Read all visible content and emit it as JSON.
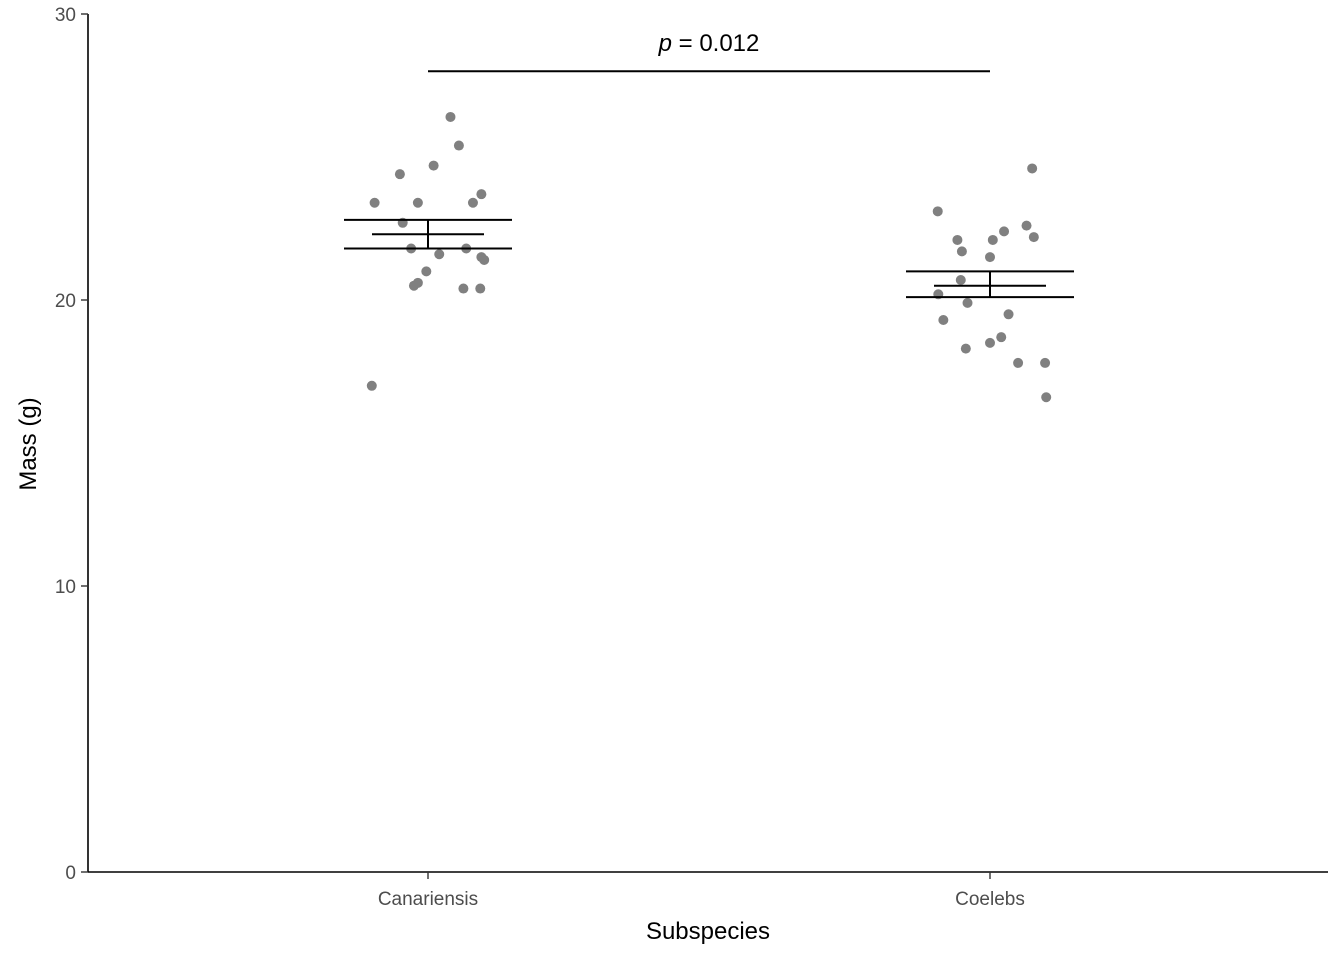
{
  "chart_data": {
    "type": "scatter",
    "title": "",
    "xlabel": "Subspecies",
    "ylabel": "Mass (g)",
    "ylim": [
      0,
      30
    ],
    "yticks": [
      0,
      10,
      20,
      30
    ],
    "categories": [
      "Canariensis",
      "Coelebs"
    ],
    "grid": false,
    "legend": "none",
    "point_color": "#808080",
    "line_color": "#000000",
    "series": [
      {
        "category": "Canariensis",
        "points": [
          {
            "jitter": 0.04,
            "y": 26.4
          },
          {
            "jitter": 0.055,
            "y": 25.4
          },
          {
            "jitter": 0.01,
            "y": 24.7
          },
          {
            "jitter": -0.05,
            "y": 24.4
          },
          {
            "jitter": 0.095,
            "y": 23.7
          },
          {
            "jitter": -0.095,
            "y": 23.4
          },
          {
            "jitter": -0.018,
            "y": 23.4
          },
          {
            "jitter": 0.08,
            "y": 23.4
          },
          {
            "jitter": -0.045,
            "y": 22.7
          },
          {
            "jitter": -0.03,
            "y": 21.8
          },
          {
            "jitter": 0.068,
            "y": 21.8
          },
          {
            "jitter": 0.02,
            "y": 21.6
          },
          {
            "jitter": 0.095,
            "y": 21.5
          },
          {
            "jitter": 0.1,
            "y": 21.4
          },
          {
            "jitter": -0.003,
            "y": 21.0
          },
          {
            "jitter": -0.018,
            "y": 20.6
          },
          {
            "jitter": -0.025,
            "y": 20.5
          },
          {
            "jitter": 0.063,
            "y": 20.4
          },
          {
            "jitter": 0.093,
            "y": 20.4
          },
          {
            "jitter": -0.1,
            "y": 17.0
          }
        ],
        "mean": 22.3,
        "se_low": 21.8,
        "se_high": 22.8
      },
      {
        "category": "Coelebs",
        "points": [
          {
            "jitter": 0.075,
            "y": 24.6
          },
          {
            "jitter": -0.093,
            "y": 23.1
          },
          {
            "jitter": 0.065,
            "y": 22.6
          },
          {
            "jitter": 0.025,
            "y": 22.4
          },
          {
            "jitter": 0.078,
            "y": 22.2
          },
          {
            "jitter": -0.058,
            "y": 22.1
          },
          {
            "jitter": 0.005,
            "y": 22.1
          },
          {
            "jitter": -0.05,
            "y": 21.7
          },
          {
            "jitter": 0.0,
            "y": 21.5
          },
          {
            "jitter": -0.052,
            "y": 20.7
          },
          {
            "jitter": -0.092,
            "y": 20.2
          },
          {
            "jitter": -0.04,
            "y": 19.9
          },
          {
            "jitter": 0.033,
            "y": 19.5
          },
          {
            "jitter": -0.083,
            "y": 19.3
          },
          {
            "jitter": 0.02,
            "y": 18.7
          },
          {
            "jitter": 0.0,
            "y": 18.5
          },
          {
            "jitter": -0.043,
            "y": 18.3
          },
          {
            "jitter": 0.05,
            "y": 17.8
          },
          {
            "jitter": 0.098,
            "y": 17.8
          },
          {
            "jitter": 0.1,
            "y": 16.6
          }
        ],
        "mean": 20.5,
        "se_low": 20.1,
        "se_high": 21.0
      }
    ],
    "annotation": {
      "p_symbol": "p",
      "p_text": " = 0.012",
      "y": 28.0,
      "from": "Canariensis",
      "to": "Coelebs"
    }
  }
}
